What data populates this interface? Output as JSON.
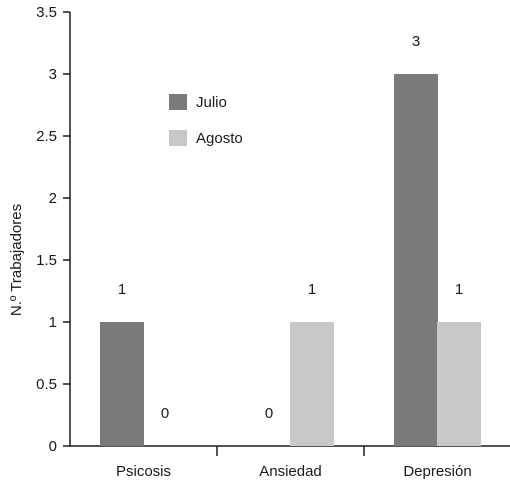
{
  "chart_data": {
    "type": "bar",
    "categories": [
      "Psicosis",
      "Ansiedad",
      "Depresión"
    ],
    "series": [
      {
        "name": "Julio",
        "color": "#7a7a7a",
        "values": [
          1,
          0,
          3
        ]
      },
      {
        "name": "Agosto",
        "color": "#c8c8c8",
        "values": [
          0,
          1,
          1
        ]
      }
    ],
    "ylabel": "N.º Trabajadores",
    "ylim": [
      0,
      3.5
    ],
    "yticks": [
      "0",
      "0.5",
      "1",
      "1.5",
      "2",
      "2.5",
      "3",
      "3.5"
    ],
    "grid": false,
    "legend_position": "top-left-inside"
  }
}
